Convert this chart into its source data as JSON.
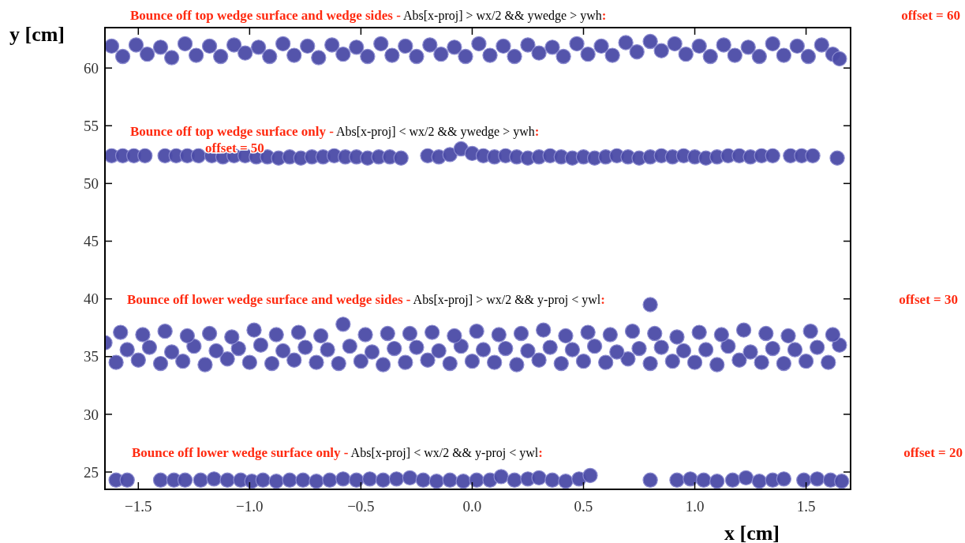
{
  "chart_data": {
    "type": "scatter",
    "xlabel": "x [cm]",
    "ylabel": "y [cm]",
    "xlim": [
      -1.65,
      1.7
    ],
    "ylim": [
      23.5,
      63.5
    ],
    "xticks": [
      {
        "value": -1.5,
        "label": "−1.5"
      },
      {
        "value": -1,
        "label": "−1.0"
      },
      {
        "value": -0.5,
        "label": "−0.5"
      },
      {
        "value": 0,
        "label": "0.0"
      },
      {
        "value": 0.5,
        "label": "0.5"
      },
      {
        "value": 1,
        "label": "1.0"
      },
      {
        "value": 1.5,
        "label": "1.5"
      }
    ],
    "yticks": [
      25,
      30,
      35,
      40,
      45,
      50,
      55,
      60
    ],
    "grid": false,
    "marker": "circle",
    "annotations": [
      "Bounce off top wedge surface and wedge sides - Abs[x-proj] > wx/2 && ywedge > ywh:",
      "offset = 60",
      "Bounce off top wedge surface only - Abs[x-proj] < wx/2 && ywedge > ywh:",
      "offset = 50",
      "Bounce off lower wedge surface and wedge sides - Abs[x-proj] > wx/2 && y-proj < ywl:",
      "offset = 30",
      "Bounce off lower wedge surface only - Abs[x-proj] < wx/2 && y-proj < ywl:",
      "offset = 20"
    ],
    "series": [
      {
        "color": "#4b4ba6",
        "x": [
          -1.62,
          -1.57,
          -1.51,
          -1.46,
          -1.4,
          -1.35,
          -1.29,
          -1.24,
          -1.18,
          -1.13,
          -1.07,
          -1.02,
          -0.96,
          -0.91,
          -0.85,
          -0.8,
          -0.74,
          -0.69,
          -0.63,
          -0.58,
          -0.52,
          -0.47,
          -0.41,
          -0.36,
          -0.3,
          -0.25,
          -0.19,
          -0.14,
          -0.08,
          -0.03,
          0.03,
          0.08,
          0.14,
          0.19,
          0.25,
          0.3,
          0.36,
          0.41,
          0.47,
          0.52,
          0.58,
          0.63,
          0.69,
          0.74,
          0.8,
          0.85,
          0.91,
          0.96,
          1.02,
          1.07,
          1.13,
          1.18,
          1.24,
          1.29,
          1.35,
          1.4,
          1.46,
          1.51,
          1.57,
          1.62,
          1.65
        ],
        "values": [
          61.9,
          61.0,
          62.0,
          61.2,
          61.8,
          60.9,
          62.1,
          61.1,
          61.9,
          61.0,
          62.0,
          61.3,
          61.8,
          61.0,
          62.1,
          61.1,
          61.9,
          60.9,
          62.0,
          61.2,
          61.8,
          61.0,
          62.1,
          61.1,
          61.9,
          61.0,
          62.0,
          61.2,
          61.8,
          61.0,
          62.1,
          61.1,
          61.9,
          61.0,
          62.0,
          61.3,
          61.8,
          61.0,
          62.1,
          61.2,
          61.9,
          61.1,
          62.2,
          61.4,
          62.3,
          61.5,
          62.1,
          61.2,
          61.9,
          61.0,
          62.0,
          61.1,
          61.8,
          61.0,
          62.1,
          61.1,
          61.9,
          61.0,
          62.0,
          61.2,
          60.8
        ]
      },
      {
        "color": "#4b4ba6",
        "x": [
          -1.62,
          -1.57,
          -1.52,
          -1.47,
          -1.38,
          -1.33,
          -1.28,
          -1.23,
          -1.17,
          -1.12,
          -1.07,
          -1.02,
          -0.97,
          -0.92,
          -0.87,
          -0.82,
          -0.77,
          -0.72,
          -0.67,
          -0.62,
          -0.57,
          -0.52,
          -0.47,
          -0.42,
          -0.37,
          -0.32,
          -0.2,
          -0.15,
          -0.1,
          -0.05,
          0.0,
          0.05,
          0.1,
          0.15,
          0.2,
          0.25,
          0.3,
          0.35,
          0.4,
          0.45,
          0.5,
          0.55,
          0.6,
          0.65,
          0.7,
          0.75,
          0.8,
          0.85,
          0.9,
          0.95,
          1.0,
          1.05,
          1.1,
          1.15,
          1.2,
          1.25,
          1.3,
          1.35,
          1.43,
          1.48,
          1.53,
          1.64
        ],
        "values": [
          52.4,
          52.4,
          52.4,
          52.4,
          52.4,
          52.4,
          52.4,
          52.4,
          52.4,
          52.3,
          52.4,
          52.4,
          52.3,
          52.3,
          52.2,
          52.3,
          52.2,
          52.3,
          52.3,
          52.4,
          52.3,
          52.3,
          52.2,
          52.3,
          52.3,
          52.2,
          52.4,
          52.3,
          52.5,
          53.0,
          52.6,
          52.4,
          52.3,
          52.4,
          52.3,
          52.2,
          52.3,
          52.4,
          52.3,
          52.2,
          52.3,
          52.2,
          52.3,
          52.4,
          52.3,
          52.2,
          52.3,
          52.4,
          52.3,
          52.4,
          52.3,
          52.2,
          52.3,
          52.4,
          52.4,
          52.3,
          52.4,
          52.4,
          52.4,
          52.4,
          52.4,
          52.2
        ]
      },
      {
        "color": "#4b4ba6",
        "x": [
          -1.6,
          -1.5,
          -1.4,
          -1.3,
          -1.2,
          -1.1,
          -1.0,
          -0.9,
          -0.8,
          -0.7,
          -0.6,
          -0.5,
          -0.4,
          -0.3,
          -0.2,
          -0.1,
          0.0,
          0.1,
          0.2,
          0.3,
          0.4,
          0.5,
          0.6,
          0.7,
          0.8,
          0.9,
          1.0,
          1.1,
          1.2,
          1.3,
          1.4,
          1.5,
          1.6,
          -1.65,
          -1.55,
          -1.45,
          -1.35,
          -1.25,
          -1.15,
          -1.05,
          -0.95,
          -0.85,
          -0.75,
          -0.65,
          -0.55,
          -0.45,
          -0.35,
          -0.25,
          -0.15,
          -0.05,
          0.05,
          0.15,
          0.25,
          0.35,
          0.45,
          0.55,
          0.65,
          0.75,
          0.85,
          0.95,
          1.05,
          1.15,
          1.25,
          1.35,
          1.45,
          1.55,
          1.65,
          -1.58,
          -1.48,
          -1.38,
          -1.28,
          -1.18,
          -1.08,
          -0.98,
          -0.88,
          -0.78,
          -0.68,
          -0.58,
          -0.48,
          -0.38,
          -0.28,
          -0.18,
          -0.08,
          0.02,
          0.12,
          0.22,
          0.32,
          0.42,
          0.52,
          0.62,
          0.72,
          0.82,
          0.92,
          1.02,
          1.12,
          1.22,
          1.32,
          1.42,
          1.52,
          1.62,
          0.8
        ],
        "values": [
          34.5,
          34.7,
          34.4,
          34.6,
          34.3,
          34.8,
          34.5,
          34.4,
          34.7,
          34.5,
          34.4,
          34.6,
          34.3,
          34.5,
          34.7,
          34.4,
          34.6,
          34.5,
          34.3,
          34.7,
          34.4,
          34.6,
          34.5,
          34.8,
          34.4,
          34.6,
          34.5,
          34.3,
          34.7,
          34.5,
          34.4,
          34.6,
          34.5,
          36.2,
          35.6,
          35.8,
          35.4,
          35.9,
          35.5,
          35.7,
          36.0,
          35.5,
          35.8,
          35.6,
          35.9,
          35.4,
          35.7,
          35.8,
          35.5,
          35.9,
          35.6,
          35.7,
          35.5,
          35.8,
          35.6,
          35.9,
          35.4,
          35.7,
          35.8,
          35.5,
          35.6,
          35.9,
          35.4,
          35.7,
          35.6,
          35.8,
          36.0,
          37.1,
          36.9,
          37.2,
          36.8,
          37.0,
          36.7,
          37.3,
          36.9,
          37.1,
          36.8,
          37.8,
          36.9,
          37.0,
          37.0,
          37.1,
          36.8,
          37.2,
          36.9,
          37.0,
          37.3,
          36.8,
          37.1,
          36.9,
          37.2,
          37.0,
          36.7,
          37.1,
          36.9,
          37.3,
          37.0,
          36.8,
          37.2,
          36.9,
          39.5
        ]
      },
      {
        "color": "#4b4ba6",
        "x": [
          -1.6,
          -1.55,
          -1.4,
          -1.34,
          -1.29,
          -1.22,
          -1.16,
          -1.1,
          -1.04,
          -0.99,
          -0.94,
          -0.88,
          -0.82,
          -0.76,
          -0.7,
          -0.64,
          -0.58,
          -0.52,
          -0.46,
          -0.4,
          -0.34,
          -0.28,
          -0.22,
          -0.16,
          -0.1,
          -0.04,
          0.02,
          0.08,
          0.13,
          0.19,
          0.25,
          0.3,
          0.36,
          0.42,
          0.48,
          0.53,
          0.8,
          0.92,
          0.98,
          1.04,
          1.1,
          1.17,
          1.23,
          1.29,
          1.35,
          1.4,
          1.49,
          1.55,
          1.61,
          1.66
        ],
        "values": [
          24.3,
          24.3,
          24.3,
          24.3,
          24.3,
          24.3,
          24.4,
          24.3,
          24.3,
          24.2,
          24.3,
          24.2,
          24.3,
          24.3,
          24.2,
          24.3,
          24.4,
          24.3,
          24.4,
          24.3,
          24.4,
          24.5,
          24.3,
          24.2,
          24.3,
          24.2,
          24.3,
          24.3,
          24.6,
          24.3,
          24.4,
          24.5,
          24.3,
          24.2,
          24.4,
          24.7,
          24.3,
          24.3,
          24.4,
          24.3,
          24.2,
          24.3,
          24.5,
          24.2,
          24.3,
          24.4,
          24.3,
          24.4,
          24.3,
          24.2
        ]
      }
    ]
  }
}
